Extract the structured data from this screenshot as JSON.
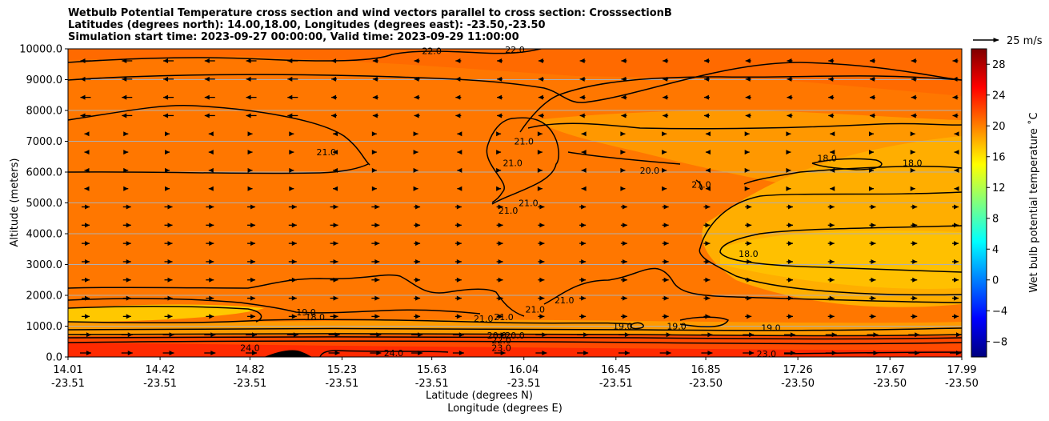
{
  "chart_data": {
    "type": "heatmap",
    "title_lines": [
      "Wetbulb Potential Temperature cross section and wind vectors parallel to cross section: CrosssectionB",
      "Latitudes (degrees north): 14.00,18.00, Longitudes (degrees east): -23.50,-23.50",
      "Simulation start time: 2023-09-27 00:00:00, Valid time: 2023-09-29 11:00:00"
    ],
    "xlabel": "Latitude (degrees N)",
    "xlabel2": "Longitude (degrees E)",
    "ylabel": "Altitude (meters)",
    "x_ticks": [
      {
        "lat": "14.01",
        "lon": "-23.51"
      },
      {
        "lat": "14.42",
        "lon": "-23.51"
      },
      {
        "lat": "14.82",
        "lon": "-23.51"
      },
      {
        "lat": "15.23",
        "lon": "-23.51"
      },
      {
        "lat": "15.63",
        "lon": "-23.51"
      },
      {
        "lat": "16.04",
        "lon": "-23.51"
      },
      {
        "lat": "16.45",
        "lon": "-23.51"
      },
      {
        "lat": "16.85",
        "lon": "-23.50"
      },
      {
        "lat": "17.26",
        "lon": "-23.50"
      },
      {
        "lat": "17.67",
        "lon": "-23.50"
      },
      {
        "lat": "17.99",
        "lon": "-23.50"
      }
    ],
    "x_range": [
      14.01,
      17.99
    ],
    "y_ticks": [
      "0.0",
      "1000.0",
      "2000.0",
      "3000.0",
      "4000.0",
      "5000.0",
      "6000.0",
      "7000.0",
      "8000.0",
      "9000.0",
      "10000.0"
    ],
    "y_range": [
      0,
      10000
    ],
    "grid": "horizontal",
    "colorbar": {
      "label": "Wet bulb potential temperature ˚C",
      "ticks": [
        "−8",
        "−4",
        "0",
        "4",
        "8",
        "12",
        "16",
        "20",
        "24",
        "28"
      ],
      "range": [
        -10,
        30
      ],
      "colormap": "jet"
    },
    "wind_key": {
      "label": "25 m/s"
    },
    "contour_labels": [
      {
        "text": "22.0",
        "lat": 15.63,
        "alt": 9930
      },
      {
        "text": "22.0",
        "lat": 16.0,
        "alt": 9980
      },
      {
        "text": "21.0",
        "lat": 15.16,
        "alt": 6650
      },
      {
        "text": "21.0",
        "lat": 15.99,
        "alt": 6300
      },
      {
        "text": "21.0",
        "lat": 16.04,
        "alt": 7000
      },
      {
        "text": "21.0",
        "lat": 15.97,
        "alt": 4750
      },
      {
        "text": "21.0",
        "lat": 16.06,
        "alt": 5000
      },
      {
        "text": "20.0",
        "lat": 16.6,
        "alt": 6050
      },
      {
        "text": "21.0",
        "lat": 16.83,
        "alt": 5600
      },
      {
        "text": "18.0",
        "lat": 17.39,
        "alt": 6450
      },
      {
        "text": "18.0",
        "lat": 17.77,
        "alt": 6300
      },
      {
        "text": "18.0",
        "lat": 17.04,
        "alt": 3350
      },
      {
        "text": "21.0",
        "lat": 16.09,
        "alt": 1550
      },
      {
        "text": "21.0",
        "lat": 16.22,
        "alt": 1850
      },
      {
        "text": "21.0",
        "lat": 15.95,
        "alt": 1300
      },
      {
        "text": "21.0",
        "lat": 15.86,
        "alt": 1250
      },
      {
        "text": "19.0",
        "lat": 15.07,
        "alt": 1450
      },
      {
        "text": "18.0",
        "lat": 15.11,
        "alt": 1300
      },
      {
        "text": "19.0",
        "lat": 16.48,
        "alt": 1000
      },
      {
        "text": "19.0",
        "lat": 16.72,
        "alt": 1000
      },
      {
        "text": "19.0",
        "lat": 17.14,
        "alt": 950
      },
      {
        "text": "20.0",
        "lat": 15.92,
        "alt": 700
      },
      {
        "text": "20.0",
        "lat": 16.0,
        "alt": 700
      },
      {
        "text": "22.0",
        "lat": 15.94,
        "alt": 550
      },
      {
        "text": "23.0",
        "lat": 15.94,
        "alt": 300
      },
      {
        "text": "23.0",
        "lat": 17.12,
        "alt": 100
      },
      {
        "text": "24.0",
        "lat": 14.82,
        "alt": 300
      },
      {
        "text": "24.0",
        "lat": 15.46,
        "alt": 130
      }
    ]
  }
}
